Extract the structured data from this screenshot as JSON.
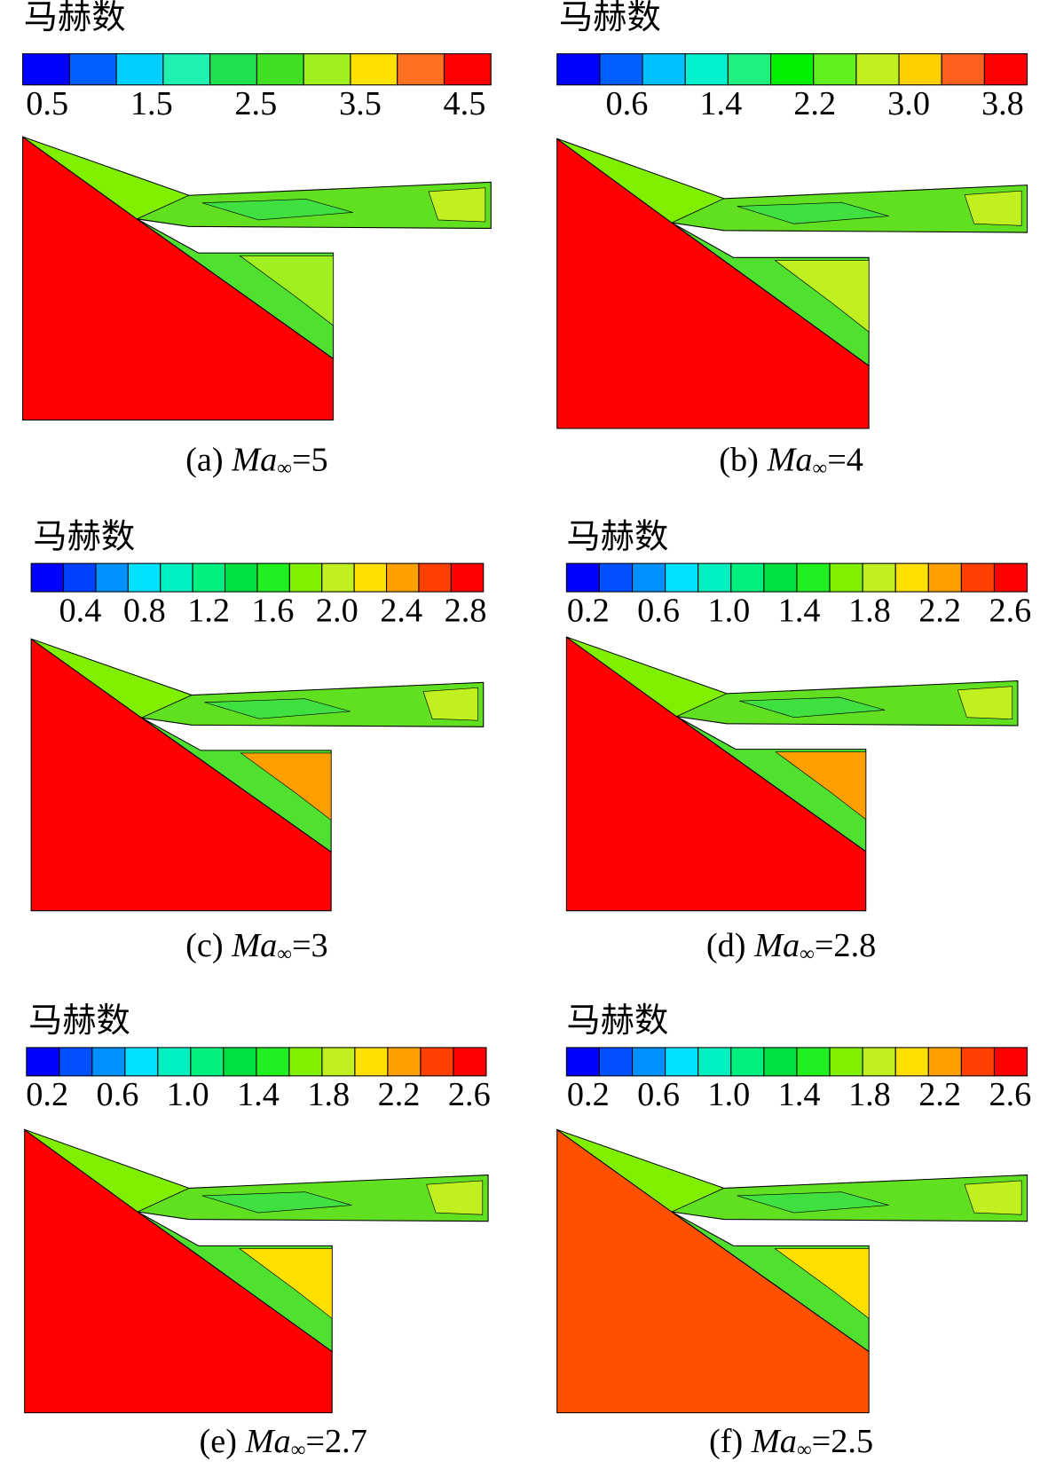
{
  "panels": [
    {
      "colorbar_title": "马赫数",
      "ticks": [
        "0.5",
        "1.5",
        "2.5",
        "3.5",
        "4.5"
      ],
      "colors": [
        "#0000ff",
        "#0060ff",
        "#00d0ff",
        "#20f0b0",
        "#20e050",
        "#40e020",
        "#a0f020",
        "#ffe000",
        "#ff7020",
        "#ff0000"
      ],
      "caption": {
        "label": "(a)",
        "symbol": "Ma",
        "subscript": "∞",
        "value": "=5"
      }
    },
    {
      "colorbar_title": "马赫数",
      "ticks": [
        "0.6",
        "1.4",
        "2.2",
        "3.0",
        "3.8"
      ],
      "colors": [
        "#0000ff",
        "#0060ff",
        "#00c0ff",
        "#00f0d0",
        "#20f080",
        "#00f000",
        "#60f020",
        "#c0f020",
        "#ffd000",
        "#ff6020",
        "#ff0000"
      ],
      "caption": {
        "label": "(b)",
        "symbol": "Ma",
        "subscript": "∞",
        "value": "=4"
      }
    },
    {
      "colorbar_title": "马赫数",
      "ticks": [
        "0.4",
        "0.8",
        "1.2",
        "1.6",
        "2.0",
        "2.4",
        "2.8"
      ],
      "colors": [
        "#0000ff",
        "#0040ff",
        "#0090ff",
        "#00e0ff",
        "#00f0c0",
        "#00f080",
        "#00e040",
        "#20f020",
        "#80f000",
        "#c0f020",
        "#ffe000",
        "#ffa000",
        "#ff4000",
        "#ff0000"
      ],
      "caption": {
        "label": "(c)",
        "symbol": "Ma",
        "subscript": "∞",
        "value": "=3"
      }
    },
    {
      "colorbar_title": "马赫数",
      "ticks": [
        "0.2",
        "0.6",
        "1.0",
        "1.4",
        "1.8",
        "2.2",
        "2.6"
      ],
      "colors": [
        "#0000ff",
        "#0050ff",
        "#0090ff",
        "#00e0ff",
        "#00f0c0",
        "#00f080",
        "#00e040",
        "#20f020",
        "#80f000",
        "#c0f020",
        "#ffe000",
        "#ffa000",
        "#ff4000",
        "#ff0000"
      ],
      "caption": {
        "label": "(d)",
        "symbol": "Ma",
        "subscript": "∞",
        "value": "=2.8"
      }
    },
    {
      "colorbar_title": "马赫数",
      "ticks": [
        "0.2",
        "0.6",
        "1.0",
        "1.4",
        "1.8",
        "2.2",
        "2.6"
      ],
      "colors": [
        "#0000ff",
        "#0050ff",
        "#0090ff",
        "#00e0ff",
        "#00f0c0",
        "#00f080",
        "#00e040",
        "#20f020",
        "#80f000",
        "#c0f020",
        "#ffe000",
        "#ffa000",
        "#ff4000",
        "#ff0000"
      ],
      "caption": {
        "label": "(e)",
        "symbol": "Ma",
        "subscript": "∞",
        "value": "=2.7"
      }
    },
    {
      "colorbar_title": "马赫数",
      "ticks": [
        "0.2",
        "0.6",
        "1.0",
        "1.4",
        "1.8",
        "2.2",
        "2.6"
      ],
      "colors": [
        "#0000ff",
        "#0050ff",
        "#0090ff",
        "#00e0ff",
        "#00f0c0",
        "#00f080",
        "#00e040",
        "#20f020",
        "#80f000",
        "#c0f020",
        "#ffe000",
        "#ffa000",
        "#ff4000",
        "#ff0000"
      ],
      "caption": {
        "label": "(f)",
        "symbol": "Ma",
        "subscript": "∞",
        "value": "=2.5"
      }
    }
  ]
}
